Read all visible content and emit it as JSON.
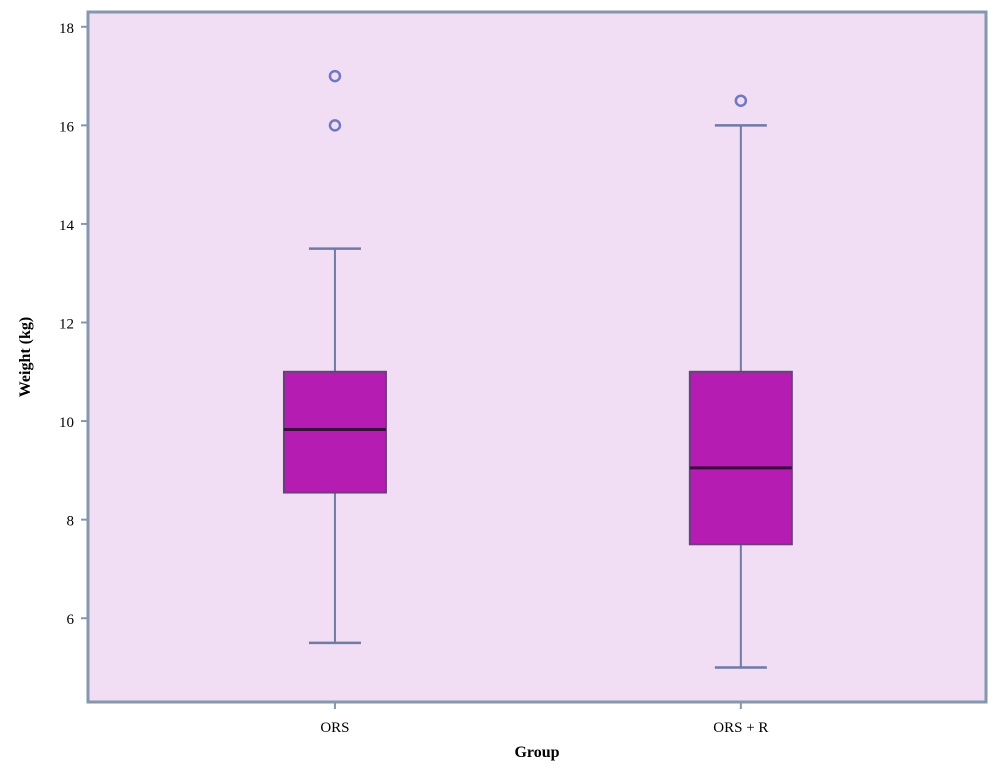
{
  "chart_data": {
    "type": "boxplot",
    "title": "",
    "xlabel": "Group",
    "ylabel": "Weight (kg)",
    "ylim": [
      4.3,
      18.3
    ],
    "yticks": [
      6,
      8,
      10,
      12,
      14,
      16,
      18
    ],
    "grid": false,
    "categories": [
      "ORS",
      "ORS + R"
    ],
    "boxes": [
      {
        "category": "ORS",
        "whisker_low": 5.5,
        "q1": 8.55,
        "median": 9.83,
        "q3": 11.0,
        "whisker_high": 13.5,
        "outliers": [
          16.0,
          17.0
        ]
      },
      {
        "category": "ORS + R",
        "whisker_low": 5.0,
        "q1": 7.5,
        "median": 9.05,
        "q3": 11.0,
        "whisker_high": 16.0,
        "outliers": [
          16.5
        ]
      }
    ],
    "colors": {
      "plot_background": "#f1def5",
      "plot_border": "#8497ab",
      "box_fill": "#b51cb1",
      "box_edge": "#6b3f7e",
      "median_line": "#3a0f3e",
      "whisker": "#6f7aa6",
      "outlier": "#7078bf"
    }
  }
}
